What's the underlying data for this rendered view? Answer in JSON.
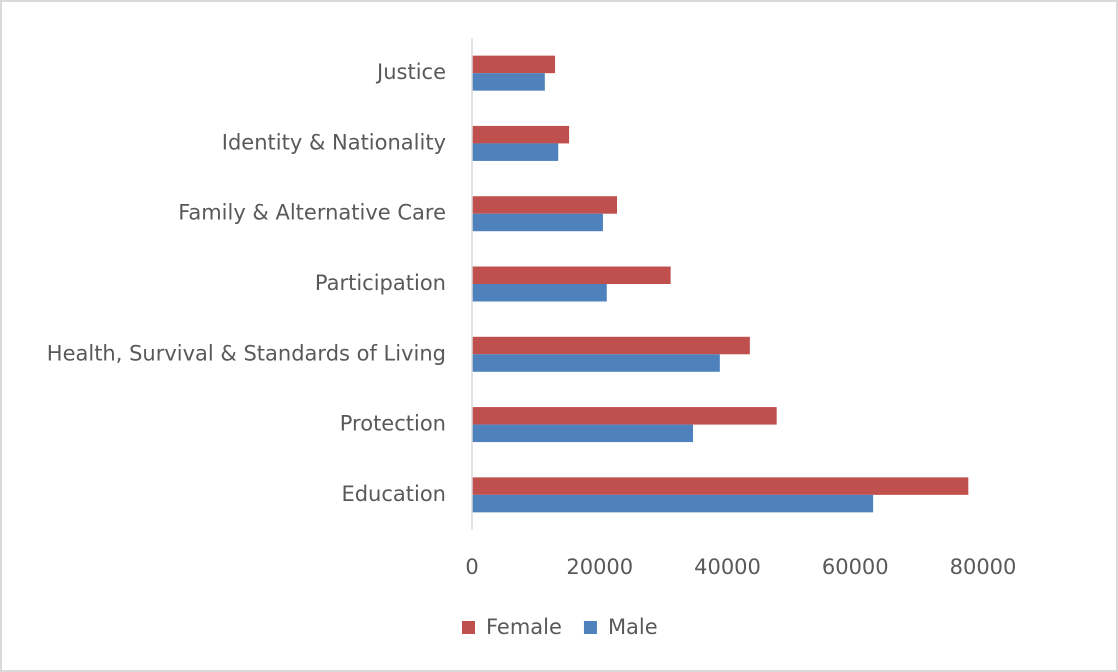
{
  "chart_data": {
    "type": "bar",
    "orientation": "horizontal",
    "categories": [
      "Justice",
      "Identity & Nationality",
      "Family & Alternative Care",
      "Participation",
      "Health, Survival & Standards of Living",
      "Protection",
      "Education"
    ],
    "series": [
      {
        "name": "Female",
        "color": "#c0504d",
        "values": [
          13000,
          15200,
          22700,
          31100,
          43500,
          47700,
          77700
        ]
      },
      {
        "name": "Male",
        "color": "#4f81bd",
        "values": [
          11400,
          13500,
          20500,
          21100,
          38800,
          34600,
          62800
        ]
      }
    ],
    "xlim": [
      0,
      80000
    ],
    "xticks": [
      0,
      20000,
      40000,
      60000,
      80000
    ],
    "legend": "bottom"
  }
}
